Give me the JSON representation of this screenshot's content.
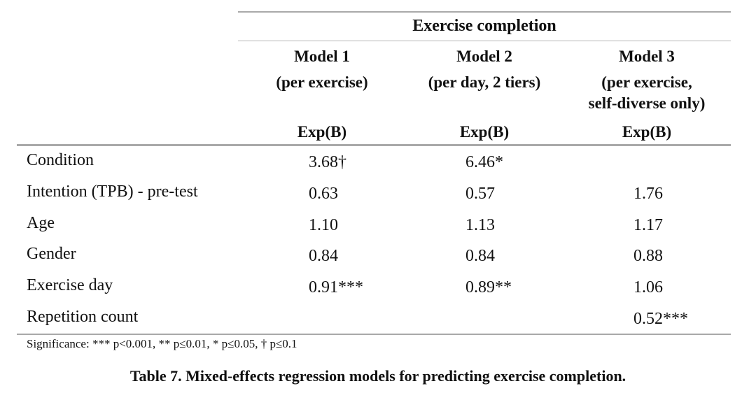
{
  "table": {
    "group_header": "Exercise completion",
    "models": [
      {
        "name": "Model 1",
        "desc": [
          "(per exercise)"
        ],
        "stat": "Exp(B)"
      },
      {
        "name": "Model 2",
        "desc": [
          "(per day, 2 tiers)"
        ],
        "stat": "Exp(B)"
      },
      {
        "name": "Model 3",
        "desc": [
          "(per exercise,",
          "self-diverse only)"
        ],
        "stat": "Exp(B)"
      }
    ],
    "rows": [
      {
        "label": "Condition",
        "values": [
          "3.68†",
          "6.46*",
          ""
        ]
      },
      {
        "label": "Intention (TPB) - pre-test",
        "values": [
          "0.63",
          "0.57",
          "1.76"
        ]
      },
      {
        "label": "Age",
        "values": [
          "1.10",
          "1.13",
          "1.17"
        ]
      },
      {
        "label": "Gender",
        "values": [
          "0.84",
          "0.84",
          "0.88"
        ]
      },
      {
        "label": "Exercise day",
        "values": [
          "0.91***",
          "0.89**",
          "1.06"
        ]
      },
      {
        "label": "Repetition count",
        "values": [
          "",
          "",
          "0.52***"
        ]
      }
    ],
    "note": "Significance: *** p<0.001, ** p≤0.01, * p≤0.05, † p≤0.1"
  },
  "caption": "Table 7. Mixed-effects regression models for predicting exercise completion."
}
